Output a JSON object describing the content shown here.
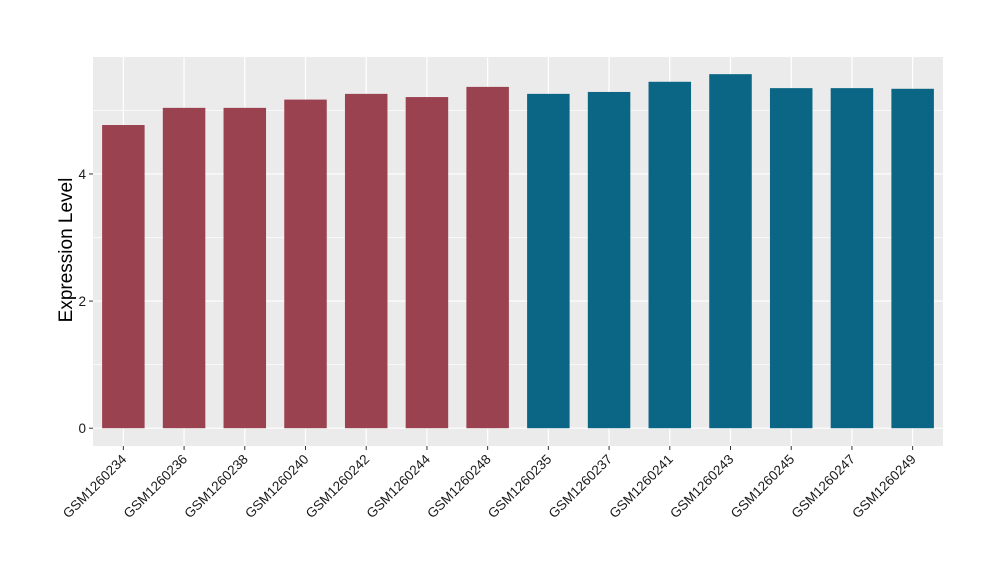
{
  "chart_data": {
    "type": "bar",
    "title": "",
    "xlabel": "",
    "ylabel": "Expression Level",
    "ylim": [
      -0.28,
      5.84
    ],
    "yticks": [
      0,
      2,
      4
    ],
    "grid": true,
    "categories": [
      "GSM1260234",
      "GSM1260236",
      "GSM1260238",
      "GSM1260240",
      "GSM1260242",
      "GSM1260244",
      "GSM1260248",
      "GSM1260235",
      "GSM1260237",
      "GSM1260241",
      "GSM1260243",
      "GSM1260245",
      "GSM1260247",
      "GSM1260249"
    ],
    "values": [
      4.77,
      5.04,
      5.04,
      5.17,
      5.26,
      5.21,
      5.37,
      5.26,
      5.29,
      5.45,
      5.57,
      5.35,
      5.35,
      5.34
    ],
    "groups": [
      0,
      0,
      0,
      0,
      0,
      0,
      0,
      1,
      1,
      1,
      1,
      1,
      1,
      1
    ],
    "group_colors": [
      "#9A4250",
      "#0B6584"
    ]
  }
}
